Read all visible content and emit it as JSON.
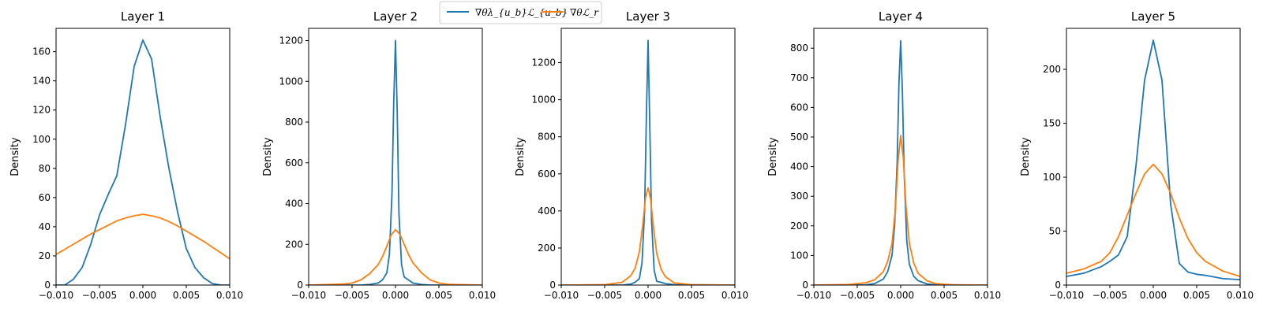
{
  "legend": {
    "entries": [
      {
        "label": "∇θλ_{u_b}ℒ_{u_b}",
        "color": "#1f77b4"
      },
      {
        "label": "∇θℒ_r",
        "color": "#ff7f0e"
      }
    ]
  },
  "chart_data": [
    {
      "type": "line",
      "title": "Layer 1",
      "ylabel": "Density",
      "xlim": [
        -0.01,
        0.01
      ],
      "ylim": [
        0,
        176
      ],
      "xticks": [
        -0.01,
        -0.005,
        0,
        0.005,
        0.01
      ],
      "xtick_labels": [
        "−0.010",
        "−0.005",
        "0.000",
        "0.005",
        "0.010"
      ],
      "yticks": [
        0,
        20,
        40,
        60,
        80,
        100,
        120,
        140,
        160
      ],
      "series": [
        {
          "name": "∇θλ_{u_b}ℒ_{u_b}",
          "color": "#1f77b4",
          "x": [
            -0.01,
            -0.009,
            -0.008,
            -0.007,
            -0.006,
            -0.005,
            -0.004,
            -0.003,
            -0.002,
            -0.001,
            0,
            0.001,
            0.002,
            0.003,
            0.004,
            0.005,
            0.006,
            0.007,
            0.008,
            0.009,
            0.01
          ],
          "y": [
            0,
            0,
            4,
            12,
            28,
            48,
            62,
            75,
            110,
            150,
            168,
            155,
            115,
            80,
            50,
            25,
            12,
            5,
            1,
            0,
            0
          ]
        },
        {
          "name": "∇θℒ_r",
          "color": "#ff7f0e",
          "x": [
            -0.01,
            -0.009,
            -0.008,
            -0.007,
            -0.006,
            -0.005,
            -0.004,
            -0.003,
            -0.002,
            -0.001,
            0,
            0.001,
            0.002,
            0.003,
            0.004,
            0.005,
            0.006,
            0.007,
            0.008,
            0.009,
            0.01
          ],
          "y": [
            21,
            24.5,
            28,
            31.5,
            35,
            38,
            41,
            44,
            46,
            47.5,
            48.5,
            47.5,
            46,
            43.5,
            40.5,
            37,
            33.5,
            30,
            26,
            22,
            18
          ]
        }
      ]
    },
    {
      "type": "line",
      "title": "Layer 2",
      "ylabel": "Density",
      "xlim": [
        -0.01,
        0.01
      ],
      "ylim": [
        0,
        1260
      ],
      "xticks": [
        -0.01,
        -0.005,
        0,
        0.005,
        0.01
      ],
      "xtick_labels": [
        "−0.010",
        "−0.005",
        "0.000",
        "0.005",
        "0.010"
      ],
      "yticks": [
        0,
        200,
        400,
        600,
        800,
        1000,
        1200
      ],
      "series": [
        {
          "name": "∇θλ_{u_b}ℒ_{u_b}",
          "color": "#1f77b4",
          "x": [
            -0.01,
            -0.004,
            -0.003,
            -0.002,
            -0.0015,
            -0.001,
            -0.0007,
            -0.0004,
            -0.0002,
            0,
            0.0002,
            0.0004,
            0.0007,
            0.001,
            0.0015,
            0.002,
            0.003,
            0.004,
            0.01
          ],
          "y": [
            0,
            0,
            3,
            10,
            25,
            60,
            150,
            450,
            900,
            1200,
            850,
            350,
            100,
            40,
            25,
            10,
            3,
            0,
            0
          ]
        },
        {
          "name": "∇θℒ_r",
          "color": "#ff7f0e",
          "x": [
            -0.01,
            -0.006,
            -0.005,
            -0.004,
            -0.003,
            -0.002,
            -0.0015,
            -0.001,
            -0.0005,
            0,
            0.0005,
            0.001,
            0.0015,
            0.002,
            0.003,
            0.004,
            0.005,
            0.006,
            0.01
          ],
          "y": [
            0,
            5,
            10,
            25,
            55,
            100,
            140,
            190,
            245,
            272,
            250,
            200,
            150,
            110,
            60,
            25,
            10,
            4,
            0
          ]
        }
      ]
    },
    {
      "type": "line",
      "title": "Layer 3",
      "ylabel": "Density",
      "xlim": [
        -0.01,
        0.01
      ],
      "ylim": [
        0,
        1385
      ],
      "xticks": [
        -0.01,
        -0.005,
        0,
        0.005,
        0.01
      ],
      "xtick_labels": [
        "−0.010",
        "−0.005",
        "0.000",
        "0.005",
        "0.010"
      ],
      "yticks": [
        0,
        200,
        400,
        600,
        800,
        1000,
        1200
      ],
      "series": [
        {
          "name": "∇θλ_{u_b}ℒ_{u_b}",
          "color": "#1f77b4",
          "x": [
            -0.01,
            -0.003,
            -0.002,
            -0.0015,
            -0.001,
            -0.0007,
            -0.0004,
            -0.0002,
            0,
            0.0002,
            0.0004,
            0.0007,
            0.001,
            0.0015,
            0.002,
            0.003,
            0.01
          ],
          "y": [
            0,
            0,
            5,
            15,
            35,
            120,
            400,
            900,
            1320,
            850,
            350,
            80,
            20,
            15,
            8,
            2,
            0
          ]
        },
        {
          "name": "∇θℒ_r",
          "color": "#ff7f0e",
          "x": [
            -0.01,
            -0.005,
            -0.003,
            -0.002,
            -0.0015,
            -0.001,
            -0.0006,
            -0.0003,
            0,
            0.0003,
            0.0006,
            0.001,
            0.0015,
            0.002,
            0.003,
            0.005,
            0.01
          ],
          "y": [
            0,
            2,
            15,
            50,
            90,
            180,
            330,
            470,
            525,
            460,
            320,
            170,
            85,
            45,
            12,
            2,
            0
          ]
        }
      ]
    },
    {
      "type": "line",
      "title": "Layer 4",
      "ylabel": "Density",
      "xlim": [
        -0.01,
        0.01
      ],
      "ylim": [
        0,
        867
      ],
      "xticks": [
        -0.01,
        -0.005,
        0,
        0.005,
        0.01
      ],
      "xtick_labels": [
        "−0.010",
        "−0.005",
        "0.000",
        "0.005",
        "0.010"
      ],
      "yticks": [
        0,
        100,
        200,
        300,
        400,
        500,
        600,
        700,
        800
      ],
      "series": [
        {
          "name": "∇θλ_{u_b}ℒ_{u_b}",
          "color": "#1f77b4",
          "x": [
            -0.01,
            -0.004,
            -0.003,
            -0.002,
            -0.0015,
            -0.001,
            -0.0007,
            -0.0004,
            -0.0002,
            0,
            0.0002,
            0.0004,
            0.0007,
            0.001,
            0.0015,
            0.002,
            0.003,
            0.004,
            0.01
          ],
          "y": [
            0,
            1,
            5,
            20,
            45,
            100,
            200,
            420,
            680,
            825,
            650,
            380,
            150,
            70,
            30,
            15,
            4,
            1,
            0
          ]
        },
        {
          "name": "∇θℒ_r",
          "color": "#ff7f0e",
          "x": [
            -0.01,
            -0.006,
            -0.004,
            -0.003,
            -0.002,
            -0.0015,
            -0.001,
            -0.0006,
            -0.0003,
            0,
            0.0003,
            0.0006,
            0.001,
            0.0015,
            0.002,
            0.003,
            0.004,
            0.006,
            0.01
          ],
          "y": [
            0,
            2,
            8,
            18,
            45,
            80,
            140,
            260,
            420,
            505,
            430,
            270,
            140,
            75,
            40,
            15,
            5,
            1,
            0
          ]
        }
      ]
    },
    {
      "type": "line",
      "title": "Layer 5",
      "ylabel": "Density",
      "xlim": [
        -0.01,
        0.01
      ],
      "ylim": [
        0,
        238
      ],
      "xticks": [
        -0.01,
        -0.005,
        0,
        0.005,
        0.01
      ],
      "xtick_labels": [
        "−0.010",
        "−0.005",
        "0.000",
        "0.005",
        "0.010"
      ],
      "yticks": [
        0,
        50,
        100,
        150,
        200
      ],
      "series": [
        {
          "name": "∇θλ_{u_b}ℒ_{u_b}",
          "color": "#1f77b4",
          "x": [
            -0.01,
            -0.008,
            -0.006,
            -0.005,
            -0.004,
            -0.003,
            -0.002,
            -0.001,
            0,
            0.001,
            0.002,
            0.003,
            0.004,
            0.005,
            0.006,
            0.008,
            0.01
          ],
          "y": [
            8,
            11,
            17,
            22,
            28,
            45,
            110,
            190,
            227,
            190,
            75,
            20,
            12,
            10,
            9,
            6,
            5
          ]
        },
        {
          "name": "∇θℒ_r",
          "color": "#ff7f0e",
          "x": [
            -0.01,
            -0.008,
            -0.006,
            -0.005,
            -0.004,
            -0.003,
            -0.002,
            -0.001,
            0,
            0.001,
            0.002,
            0.003,
            0.004,
            0.005,
            0.006,
            0.008,
            0.01
          ],
          "y": [
            11,
            15,
            22,
            30,
            45,
            65,
            85,
            103,
            112,
            103,
            85,
            62,
            43,
            30,
            22,
            13,
            8
          ]
        }
      ]
    }
  ]
}
